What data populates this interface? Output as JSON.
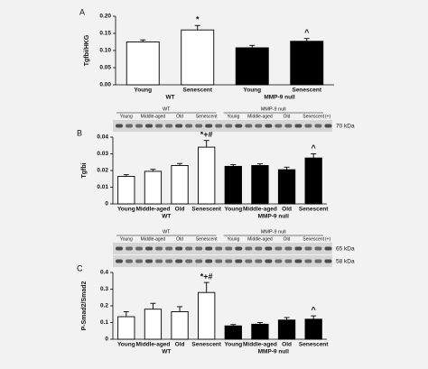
{
  "chart_data": [
    {
      "type": "bar",
      "panel": "A",
      "y_label": "Tgfbi/HKG",
      "categories": [
        "Young",
        "Senescent",
        "Young",
        "Senescent"
      ],
      "groups": [
        "WT",
        "MMP-9 null"
      ],
      "values": [
        0.125,
        0.16,
        0.108,
        0.127
      ],
      "errors": [
        0.006,
        0.013,
        0.007,
        0.008
      ],
      "colors": [
        "#ffffff",
        "#ffffff",
        "#000000",
        "#000000"
      ],
      "marks": [
        null,
        "*",
        null,
        "^"
      ],
      "ylim": [
        0,
        0.2
      ],
      "yticks": [
        {
          "value": 0,
          "label": "0.00"
        },
        {
          "value": 0.05,
          "label": "0.05"
        },
        {
          "value": 0.1,
          "label": "0.10"
        },
        {
          "value": 0.15,
          "label": "0.15"
        },
        {
          "value": 0.2,
          "label": "0.20"
        }
      ]
    },
    {
      "type": "bar",
      "panel": "B",
      "y_label": "Tgfbi",
      "categories": [
        "Young",
        "Middle-aged",
        "Old",
        "Senescent",
        "Young",
        "Middle-aged",
        "Old",
        "Senescent"
      ],
      "groups": [
        "WT",
        "MMP-9 null"
      ],
      "values": [
        0.0165,
        0.0195,
        0.023,
        0.034,
        0.0225,
        0.023,
        0.0205,
        0.0275
      ],
      "errors": [
        0.001,
        0.0012,
        0.0012,
        0.004,
        0.001,
        0.001,
        0.0015,
        0.0025
      ],
      "colors": [
        "#ffffff",
        "#ffffff",
        "#ffffff",
        "#ffffff",
        "#000000",
        "#000000",
        "#000000",
        "#000000"
      ],
      "marks": [
        null,
        null,
        null,
        "*+#",
        null,
        null,
        null,
        "^"
      ],
      "ylim": [
        0,
        0.04
      ],
      "yticks": [
        0,
        0.01,
        0.02,
        0.03,
        0.04
      ],
      "blot": {
        "groups": [
          "WT",
          "MMP-9 null"
        ],
        "control": "(+)",
        "markers": [
          "70 kDa"
        ]
      }
    },
    {
      "type": "bar",
      "panel": "C",
      "y_label": "P-Smad2/Smad2",
      "categories": [
        "Young",
        "Middle-aged",
        "Old",
        "Senescent",
        "Young",
        "Middle-aged",
        "Old",
        "Senescent"
      ],
      "groups": [
        "WT",
        "MMP-9 null"
      ],
      "values": [
        0.135,
        0.18,
        0.165,
        0.28,
        0.08,
        0.09,
        0.115,
        0.12
      ],
      "errors": [
        0.03,
        0.035,
        0.03,
        0.06,
        0.008,
        0.01,
        0.015,
        0.02
      ],
      "colors": [
        "#ffffff",
        "#ffffff",
        "#ffffff",
        "#ffffff",
        "#000000",
        "#000000",
        "#000000",
        "#000000"
      ],
      "marks": [
        null,
        null,
        null,
        "*+#",
        null,
        null,
        null,
        "^"
      ],
      "ylim": [
        0,
        0.4
      ],
      "yticks": [
        0,
        0.1,
        0.2,
        0.3,
        0.4
      ],
      "blot": {
        "groups": [
          "WT",
          "MMP-9 null"
        ],
        "control": "(+)",
        "markers": [
          "65 kDa",
          "58 kDa"
        ]
      }
    }
  ]
}
